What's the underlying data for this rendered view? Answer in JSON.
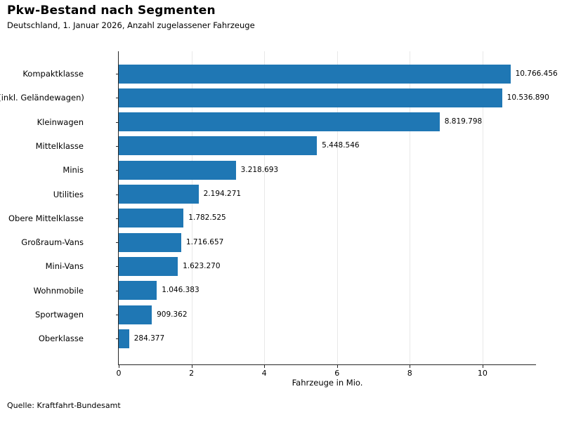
{
  "header": {
    "title": "Pkw-Bestand nach Segmenten",
    "subtitle": "Deutschland, 1. Januar 2026, Anzahl zugelassener Fahrzeuge"
  },
  "footer": {
    "source": "Quelle: Kraftfahrt-Bundesamt"
  },
  "chart_data": {
    "type": "bar",
    "orientation": "horizontal",
    "title": "Pkw-Bestand nach Segmenten",
    "subtitle": "Deutschland, 1. Januar 2026, Anzahl zugelassener Fahrzeuge",
    "categories": [
      "Kompaktklasse",
      "SUVs (inkl. Geländewagen)",
      "Kleinwagen",
      "Mittelklasse",
      "Minis",
      "Utilities",
      "Obere Mittelklasse",
      "Großraum-Vans",
      "Mini-Vans",
      "Wohnmobile",
      "Sportwagen",
      "Oberklasse"
    ],
    "values": [
      10766456,
      10536890,
      8819798,
      5448546,
      3218693,
      2194271,
      1782525,
      1716657,
      1623270,
      1046383,
      909362,
      284377
    ],
    "value_labels": [
      "10.766.456",
      "10.536.890",
      "8.819.798",
      "5.448.546",
      "3.218.693",
      "2.194.271",
      "1.782.525",
      "1.716.657",
      "1.623.270",
      "1.046.383",
      "909.362",
      "284.377"
    ],
    "xlabel": "Fahrzeuge in Mio.",
    "ylabel": "",
    "x_ticks": [
      0,
      2,
      4,
      6,
      8,
      10
    ],
    "xlim": [
      0,
      11.47
    ],
    "unit_divisor": 1000000,
    "bar_color": "#1f77b4",
    "grid": true,
    "gridline_color": "#e8e8e8",
    "legend": "none",
    "source": "Quelle: Kraftfahrt-Bundesamt"
  }
}
